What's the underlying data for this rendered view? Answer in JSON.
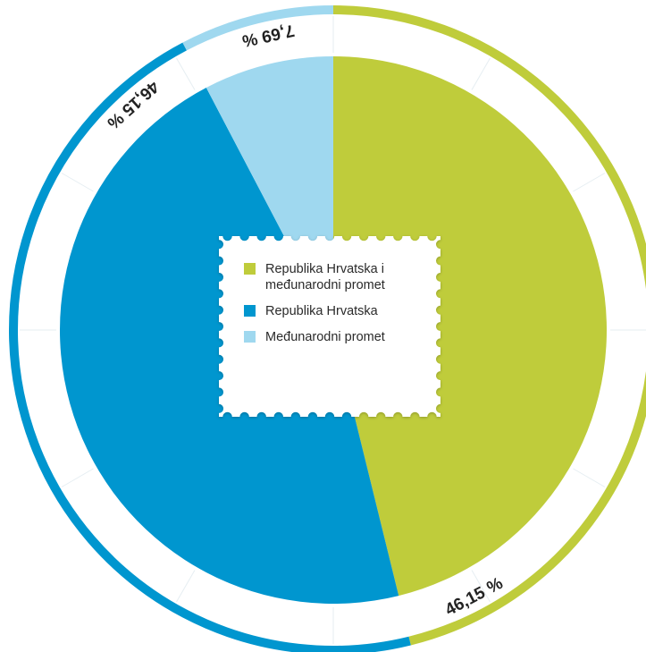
{
  "chart_data": {
    "type": "pie",
    "slices": [
      {
        "label": "Republika Hrvatska i međunarodni promet",
        "value": 46.15,
        "display": "46,15 %",
        "color": "#bfcc3b"
      },
      {
        "label": "Republika Hrvatska",
        "value": 46.15,
        "display": "46,15 %",
        "color": "#0096cf"
      },
      {
        "label": "Međunarodni promet",
        "value": 7.69,
        "display": "7,69 %",
        "color": "#9fd8ef"
      }
    ],
    "legend": {
      "placement": "center",
      "items": [
        {
          "lines": [
            "Republika Hrvatska i",
            "međunarodni promet"
          ],
          "color": "#bfcc3b"
        },
        {
          "lines": [
            "Republika Hrvatska"
          ],
          "color": "#0096cf"
        },
        {
          "lines": [
            "Međunarodni promet"
          ],
          "color": "#9fd8ef"
        }
      ]
    }
  }
}
